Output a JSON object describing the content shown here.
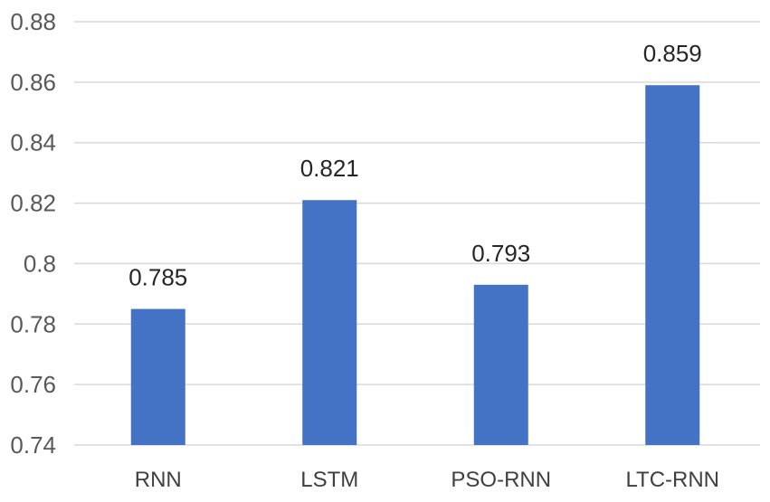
{
  "chart_data": {
    "type": "bar",
    "categories": [
      "RNN",
      "LSTM",
      "PSO-RNN",
      "LTC-RNN"
    ],
    "values": [
      0.785,
      0.821,
      0.793,
      0.859
    ],
    "value_labels": [
      "0.785",
      "0.821",
      "0.793",
      "0.859"
    ],
    "title": "",
    "xlabel": "",
    "ylabel": "",
    "ylim": [
      0.74,
      0.88
    ],
    "yticks": [
      0.74,
      0.76,
      0.78,
      0.8,
      0.82,
      0.84,
      0.86,
      0.88
    ],
    "ytick_labels": [
      "0.74",
      "0.76",
      "0.78",
      "0.8",
      "0.82",
      "0.84",
      "0.86",
      "0.88"
    ],
    "grid": true,
    "legend": "none",
    "colors": {
      "bar": "#4472c4",
      "grid": "#d9d9d9",
      "tick_text": "#595959",
      "label_text": "#262626"
    }
  }
}
